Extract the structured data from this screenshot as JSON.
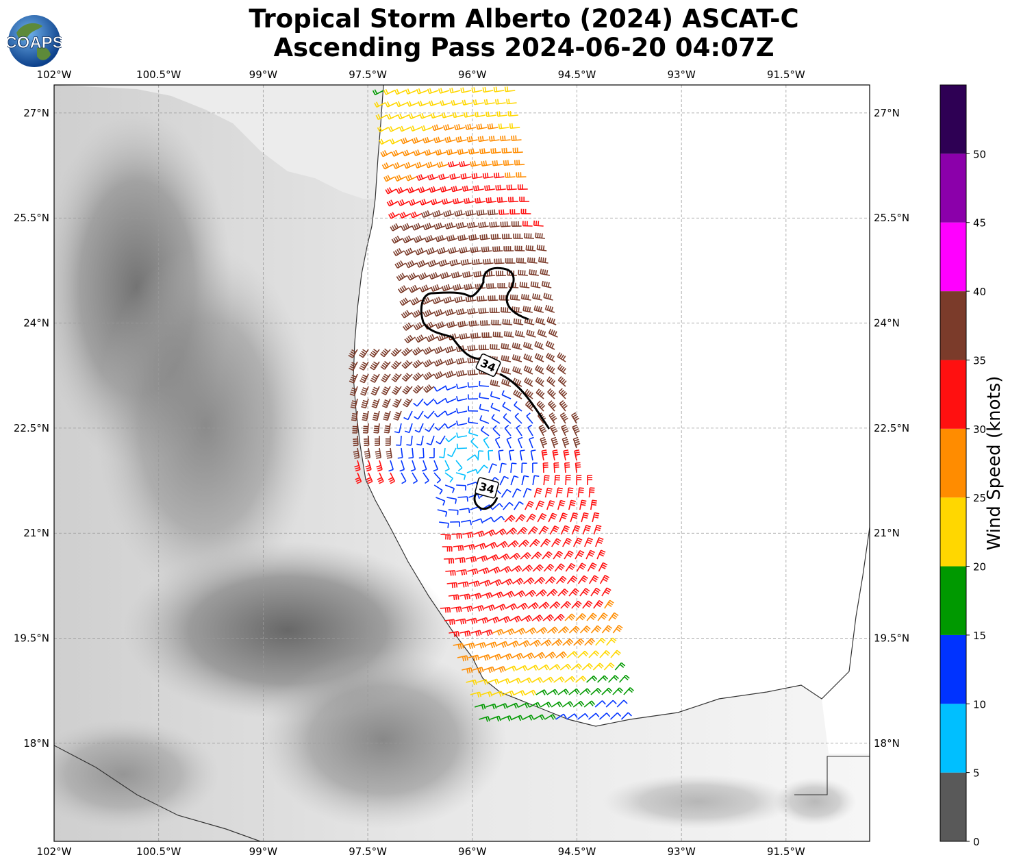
{
  "header": {
    "title_line1": "Tropical Storm Alberto (2024) ASCAT-C",
    "title_line2": "Ascending Pass 2024-06-20 04:07Z",
    "logo_text": "COAPS"
  },
  "map": {
    "extent": {
      "lon_min": -102.0,
      "lon_max": -90.3,
      "lat_min": 16.6,
      "lat_max": 27.4
    },
    "lon_labels": [
      "102°W",
      "100.5°W",
      "99°W",
      "97.5°W",
      "96°W",
      "94.5°W",
      "93°W",
      "91.5°W"
    ],
    "lon_values": [
      -102.0,
      -100.5,
      -99.0,
      -97.5,
      -96.0,
      -94.5,
      -93.0,
      -91.5
    ],
    "lat_labels": [
      "27°N",
      "25.5°N",
      "24°N",
      "22.5°N",
      "21°N",
      "19.5°N",
      "18°N"
    ],
    "lat_values": [
      27.0,
      25.5,
      24.0,
      22.5,
      21.0,
      19.5,
      18.0
    ],
    "grid": true,
    "contour_label": "34",
    "contour_levels_kt": [
      34
    ]
  },
  "colorbar": {
    "label": "Wind Speed (knots)",
    "tick_labels": [
      "0",
      "5",
      "10",
      "15",
      "20",
      "25",
      "30",
      "35",
      "40",
      "45",
      "50"
    ],
    "bounds": [
      0,
      5,
      10,
      15,
      20,
      25,
      30,
      35,
      40,
      45,
      50,
      55
    ],
    "colors": [
      "#595959",
      "#00bfff",
      "#0033ff",
      "#009900",
      "#ffd700",
      "#ff8c00",
      "#ff1010",
      "#7b3b2a",
      "#ff00ff",
      "#8b00aa",
      "#2e0054"
    ]
  },
  "storm_center": {
    "lon": -96.1,
    "lat": 22.1
  }
}
